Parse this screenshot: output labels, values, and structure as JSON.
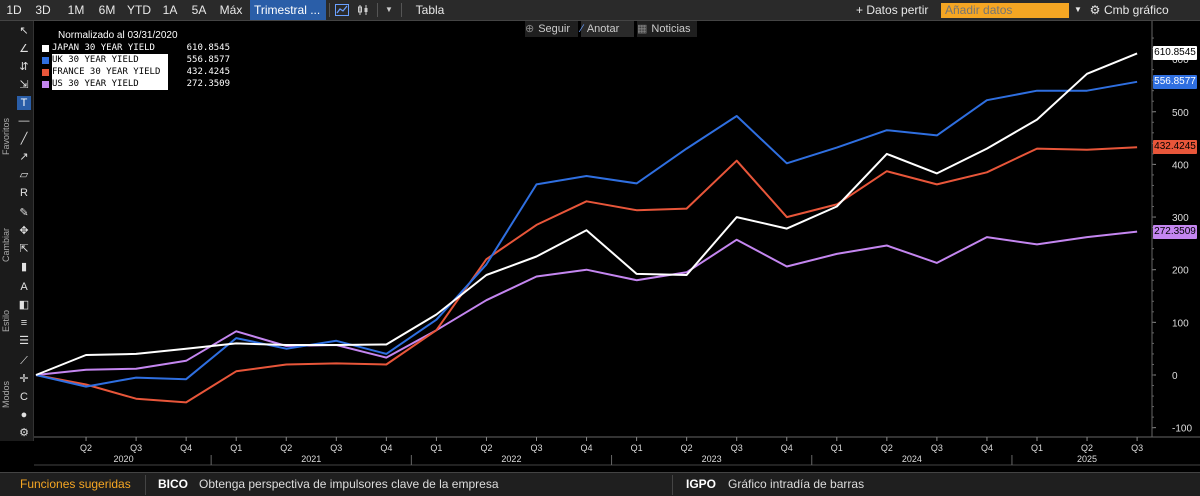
{
  "toolbar": {
    "periods": [
      "1D",
      "3D",
      "1M",
      "6M",
      "YTD",
      "1A",
      "5A",
      "Máx"
    ],
    "interval": "Trimestral ...",
    "chart_type_icon": "line-chart-icon",
    "candle_icon": "candlestick-icon",
    "dropdown_icon": "chevron-down-icon",
    "table_label": "Tabla",
    "data_share_label": "+ Datos pertir",
    "add_data_placeholder": "Añadir datos",
    "chart_change_label": "Cmb gráfico",
    "accent": "#2a5ea8",
    "input_color": "#f5a623"
  },
  "chart_overlay": {
    "follow_label": "Seguir",
    "annotate_label": "Anotar",
    "news_label": "Noticias"
  },
  "left_panel": {
    "sections": [
      "Favoritos",
      "Cambiar",
      "Estilo",
      "Modos"
    ],
    "tools": [
      "cursor-icon",
      "line-tool-icon",
      "measure-icon",
      "trendline-icon",
      "text-tool-icon",
      "horizontal-line-icon",
      "ray-icon",
      "arrow-icon",
      "channel-icon",
      "retracement-icon",
      "pen-icon",
      "crosshair-icon",
      "pointer-icon",
      "trash-icon",
      "font-icon",
      "fill-color-icon",
      "line-style-icon",
      "line-width-icon",
      "ruler-icon",
      "cursor-mode-icon",
      "magnet-icon",
      "color-mode-icon",
      "settings-icon"
    ]
  },
  "legend": {
    "header": "Normalizado al 03/31/2020",
    "entries": [
      {
        "name": "JAPAN 30 YEAR YIELD",
        "value": "610.8545",
        "color": "#ffffff"
      },
      {
        "name": "UK 30 YEAR YIELD",
        "value": "556.8577",
        "color": "#2f6fe0"
      },
      {
        "name": "FRANCE 30 YEAR YIELD",
        "value": "432.4245",
        "color": "#e8563a"
      },
      {
        "name": "US 30 YEAR YIELD",
        "value": "272.3509",
        "color": "#c486f0"
      }
    ]
  },
  "chart_data": {
    "type": "line",
    "title": "",
    "x": [
      "Q1 2020",
      "Q2 2020",
      "Q3 2020",
      "Q4 2020",
      "Q1 2021",
      "Q2 2021",
      "Q3 2021",
      "Q4 2021",
      "Q1 2022",
      "Q2 2022",
      "Q3 2022",
      "Q4 2022",
      "Q1 2023",
      "Q2 2023",
      "Q3 2023",
      "Q4 2023",
      "Q1 2024",
      "Q2 2024",
      "Q3 2024",
      "Q4 2024",
      "Q1 2025",
      "Q2 2025",
      "Q3 2025"
    ],
    "x_tick_labels": [
      "Q2",
      "Q3",
      "Q4",
      "Q1",
      "Q2",
      "Q3",
      "Q4",
      "Q1",
      "Q2",
      "Q3",
      "Q4",
      "Q1",
      "Q2",
      "Q3",
      "Q4",
      "Q1",
      "Q2",
      "Q3",
      "Q4",
      "Q1",
      "Q2",
      "Q3"
    ],
    "year_labels": [
      "2020",
      "2021",
      "2022",
      "2023",
      "2024",
      "2025"
    ],
    "y_ticks": [
      -100,
      0,
      100,
      200,
      300,
      400,
      500,
      600
    ],
    "ylim": [
      -108,
      645
    ],
    "grid": false,
    "legend_position": "top-left",
    "series": [
      {
        "name": "JAPAN 30 YEAR YIELD",
        "color": "#ffffff",
        "values": [
          0,
          38,
          40,
          50,
          60,
          57,
          57,
          58,
          115,
          190,
          225,
          275,
          192,
          190,
          300,
          278,
          320,
          420,
          383,
          430,
          485,
          572,
          610.8545
        ]
      },
      {
        "name": "UK 30 YEAR YIELD",
        "color": "#2f6fe0",
        "values": [
          0,
          -22,
          -5,
          -8,
          70,
          50,
          65,
          40,
          105,
          210,
          362,
          378,
          364,
          430,
          492,
          402,
          432,
          465,
          455,
          522,
          540,
          540,
          556.8577
        ]
      },
      {
        "name": "FRANCE 30 YEAR YIELD",
        "color": "#e8563a",
        "values": [
          0,
          -18,
          -45,
          -52,
          7,
          20,
          22,
          20,
          85,
          220,
          285,
          330,
          313,
          316,
          407,
          300,
          324,
          387,
          362,
          385,
          430,
          428,
          432.4245
        ]
      },
      {
        "name": "US 30 YEAR YIELD",
        "color": "#c486f0",
        "values": [
          0,
          10,
          12,
          27,
          83,
          55,
          57,
          33,
          85,
          142,
          187,
          200,
          180,
          195,
          257,
          206,
          230,
          246,
          213,
          262,
          248,
          262,
          272.3509
        ]
      }
    ],
    "last_value_labels": [
      "610.8545",
      "556.8577",
      "432.4245",
      "272.3509"
    ]
  },
  "bottom": {
    "suggested": "Funciones sugeridas",
    "suggested_color": "#f5a623",
    "items": [
      {
        "code": "BICO",
        "text": "Obtenga perspectiva de impulsores clave de la empresa"
      },
      {
        "code": "IGPO",
        "text": "Gráfico intradía de barras"
      }
    ]
  }
}
